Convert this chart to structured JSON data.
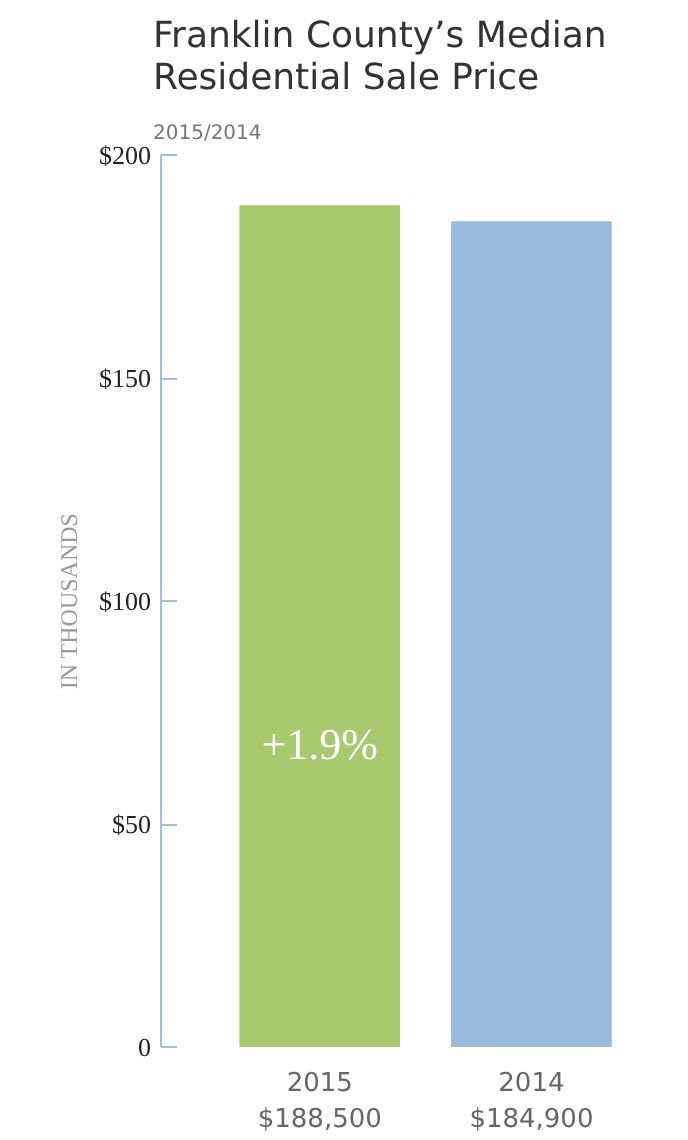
{
  "chart_data": {
    "type": "bar",
    "title": "Franklin County’s Median Residential Sale Price",
    "subtitle": "2015/2014",
    "ylabel": "IN THOUSANDS",
    "categories": [
      "2015",
      "2014"
    ],
    "values": [
      188.5,
      184.9
    ],
    "colors": [
      "#a8c96e",
      "#99bbdd"
    ],
    "annotations": [
      "+1.9%",
      "$188,500",
      "$184,900"
    ],
    "ylim": [
      0,
      200
    ],
    "yticks": [
      {
        "value": 0,
        "label": "0"
      },
      {
        "value": 50,
        "label": "$50"
      },
      {
        "value": 100,
        "label": "$100"
      },
      {
        "value": 150,
        "label": "$150"
      },
      {
        "value": 200,
        "label": "$200"
      }
    ],
    "grid": false
  }
}
